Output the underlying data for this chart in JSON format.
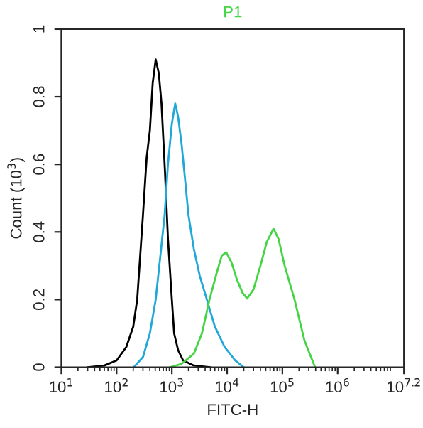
{
  "chart_data": {
    "type": "line",
    "title": "P1",
    "xlabel": "FITC-H",
    "ylabel": "Count (10$^{3}$)",
    "log": "x",
    "xlim": [
      10,
      15848931.9
    ],
    "xticks": [
      {
        "value": 10,
        "label": "10$^{1}$"
      },
      {
        "value": 100,
        "label": "10$^{2}$"
      },
      {
        "value": 1000,
        "label": "10$^{3}$"
      },
      {
        "value": 10000,
        "label": "10$^{4}$"
      },
      {
        "value": 100000,
        "label": "10$^{5}$"
      },
      {
        "value": 1000000,
        "label": "10$^{6}$"
      },
      {
        "value": 15848931.9,
        "label": "10$^{7.2}$"
      }
    ],
    "ylim": [
      0,
      1
    ],
    "yticks": [
      0,
      0.2,
      0.4,
      0.6,
      0.8,
      1
    ],
    "grid": false,
    "marker": "none",
    "line_style": "solid",
    "series": [
      {
        "color": "#000000",
        "x": [
          30,
          60,
          100,
          150,
          200,
          236,
          300,
          350,
          400,
          450,
          510,
          580,
          650,
          750,
          850,
          1000,
          1100,
          1300,
          1600,
          2500,
          5000
        ],
        "values": [
          0,
          0.005,
          0.02,
          0.06,
          0.12,
          0.2,
          0.45,
          0.62,
          0.7,
          0.84,
          0.91,
          0.87,
          0.78,
          0.58,
          0.38,
          0.2,
          0.1,
          0.05,
          0.02,
          0.005,
          0
        ]
      },
      {
        "color": "#1fa8d8",
        "x": [
          205,
          300,
          400,
          510,
          620,
          740,
          850,
          1000,
          1150,
          1300,
          1500,
          1700,
          2000,
          2500,
          3200,
          4300,
          6000,
          9000,
          14000,
          20000
        ],
        "values": [
          0,
          0.03,
          0.1,
          0.2,
          0.33,
          0.45,
          0.6,
          0.72,
          0.78,
          0.74,
          0.66,
          0.57,
          0.45,
          0.35,
          0.27,
          0.2,
          0.12,
          0.06,
          0.02,
          0
        ]
      },
      {
        "color": "#44d444",
        "x": [
          930,
          1500,
          2500,
          3500,
          4800,
          6500,
          8000,
          9600,
          12000,
          15000,
          19000,
          23000,
          30000,
          40000,
          52000,
          69000,
          85000,
          110000,
          166000,
          250000,
          390000
        ],
        "values": [
          0,
          0.01,
          0.04,
          0.1,
          0.2,
          0.28,
          0.33,
          0.34,
          0.31,
          0.26,
          0.22,
          0.203,
          0.23,
          0.3,
          0.37,
          0.41,
          0.38,
          0.3,
          0.2,
          0.08,
          0
        ]
      }
    ]
  }
}
